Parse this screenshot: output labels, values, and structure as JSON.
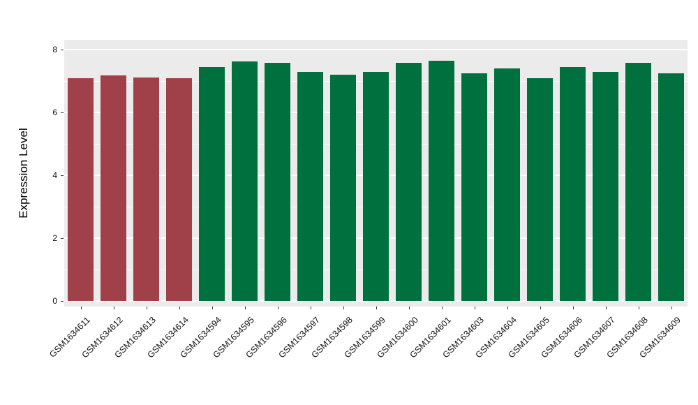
{
  "chart_data": {
    "type": "bar",
    "title": "",
    "xlabel": "",
    "ylabel": "Expression Level",
    "ylim": [
      0,
      8
    ],
    "yticks": [
      0,
      2,
      4,
      6,
      8
    ],
    "yticks_minor": [
      1,
      3,
      5,
      7
    ],
    "grid": "on",
    "legend": "none",
    "panel_background": "#EBEBEB",
    "gridline_color": "#FFFFFF",
    "group_colors": {
      "highlight": "#A04048",
      "default": "#00713E"
    },
    "categories": [
      "GSM1634611",
      "GSM1634612",
      "GSM1634613",
      "GSM1634614",
      "GSM1634594",
      "GSM1634595",
      "GSM1634596",
      "GSM1634597",
      "GSM1634598",
      "GSM1634599",
      "GSM1634600",
      "GSM1634601",
      "GSM1634603",
      "GSM1634604",
      "GSM1634605",
      "GSM1634606",
      "GSM1634607",
      "GSM1634608",
      "GSM1634609"
    ],
    "values": [
      7.1,
      7.18,
      7.12,
      7.08,
      7.45,
      7.62,
      7.57,
      7.3,
      7.2,
      7.3,
      7.58,
      7.65,
      7.25,
      7.4,
      7.08,
      7.45,
      7.3,
      7.58,
      7.25
    ],
    "bar_colors": [
      "#A04048",
      "#A04048",
      "#A04048",
      "#A04048",
      "#00713E",
      "#00713E",
      "#00713E",
      "#00713E",
      "#00713E",
      "#00713E",
      "#00713E",
      "#00713E",
      "#00713E",
      "#00713E",
      "#00713E",
      "#00713E",
      "#00713E",
      "#00713E",
      "#00713E"
    ]
  }
}
